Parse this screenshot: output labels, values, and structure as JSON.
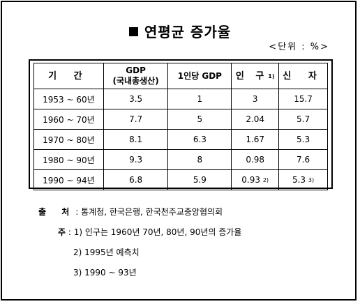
{
  "title": "연평균 증가율",
  "unit": "<단위 : %>",
  "table": {
    "headers": {
      "period": "기 간",
      "gdp_line1": "GDP",
      "gdp_line2": "(국내총생산)",
      "per_capita_gdp": "1인당 GDP",
      "population": "인 구",
      "population_mark": "1)",
      "credit": "신 자"
    },
    "rows": [
      {
        "period": "1953 ~ 60년",
        "gdp": "3.5",
        "per_capita": "1",
        "population": "3",
        "population_mark": "",
        "credit": "15.7",
        "credit_mark": ""
      },
      {
        "period": "1960 ~ 70년",
        "gdp": "7.7",
        "per_capita": "5",
        "population": "2.04",
        "population_mark": "",
        "credit": "5.7",
        "credit_mark": ""
      },
      {
        "period": "1970 ~ 80년",
        "gdp": "8.1",
        "per_capita": "6.3",
        "population": "1.67",
        "population_mark": "",
        "credit": "5.3",
        "credit_mark": ""
      },
      {
        "period": "1980 ~ 90년",
        "gdp": "9.3",
        "per_capita": "8",
        "population": "0.98",
        "population_mark": "",
        "credit": "7.6",
        "credit_mark": ""
      },
      {
        "period": "1990 ~ 94년",
        "gdp": "6.8",
        "per_capita": "5.9",
        "population": "0.93",
        "population_mark": "2)",
        "credit": "5.3",
        "credit_mark": "3)"
      }
    ]
  },
  "notes": {
    "source_label": "출 처",
    "source_text": ": 통계청, 한국은행, 한국천주교중앙협의회",
    "note_label": "주",
    "note_1": ": 1) 인구는 1960년 70년, 80년, 90년의 증가율",
    "note_2": "2) 1995년 예측치",
    "note_3": "3) 1990 ~ 93년"
  }
}
